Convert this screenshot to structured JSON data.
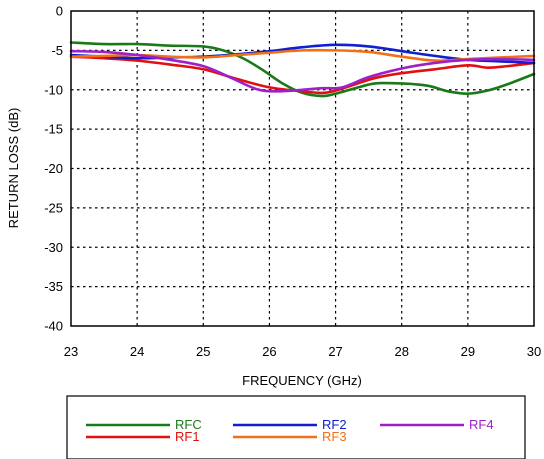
{
  "chart_data": {
    "type": "line",
    "xlabel": "FREQUENCY (GHz)",
    "ylabel": "RETURN LOSS  (dB)",
    "xlim": [
      23,
      30
    ],
    "ylim": [
      -40,
      0
    ],
    "xticks": [
      "23",
      "24",
      "25",
      "26",
      "27",
      "28",
      "29",
      "30"
    ],
    "yticks": [
      "0",
      "-5",
      "-10",
      "-15",
      "-20",
      "-25",
      "-30",
      "-35",
      "-40"
    ],
    "grid": true,
    "legend_position": "bottom",
    "series": [
      {
        "name": "RFC",
        "color": "#1a7a1a",
        "x": [
          23,
          23.5,
          24,
          24.5,
          25,
          25.3,
          25.6,
          25.9,
          26.2,
          26.5,
          26.8,
          27.0,
          27.3,
          27.6,
          28,
          28.4,
          28.7,
          29,
          29.3,
          29.6,
          30
        ],
        "y": [
          -4.0,
          -4.2,
          -4.2,
          -4.4,
          -4.5,
          -5.0,
          -6.0,
          -7.5,
          -9.2,
          -10.4,
          -10.8,
          -10.5,
          -9.8,
          -9.2,
          -9.2,
          -9.5,
          -10.2,
          -10.5,
          -10.1,
          -9.3,
          -8.0
        ]
      },
      {
        "name": "RF1",
        "color": "#e01010",
        "x": [
          23,
          23.5,
          24,
          24.5,
          25,
          25.5,
          26,
          26.5,
          26.8,
          27,
          27.3,
          27.6,
          28,
          28.5,
          29,
          29.3,
          29.6,
          30
        ],
        "y": [
          -5.8,
          -6.0,
          -6.3,
          -6.8,
          -7.4,
          -8.6,
          -9.7,
          -10.2,
          -10.4,
          -10.1,
          -9.3,
          -8.5,
          -7.9,
          -7.4,
          -6.9,
          -7.2,
          -7.0,
          -6.6
        ]
      },
      {
        "name": "RF2",
        "color": "#1020d0",
        "x": [
          23,
          23.5,
          24,
          24.5,
          25,
          25.5,
          26,
          26.5,
          27,
          27.5,
          28,
          28.5,
          29,
          29.5,
          30
        ],
        "y": [
          -5.6,
          -5.8,
          -6.0,
          -5.9,
          -5.8,
          -5.5,
          -5.1,
          -4.6,
          -4.3,
          -4.5,
          -5.1,
          -5.7,
          -6.2,
          -6.4,
          -6.6
        ]
      },
      {
        "name": "RF3",
        "color": "#f07018",
        "x": [
          23,
          23.5,
          24,
          24.5,
          25,
          25.5,
          26,
          26.5,
          27,
          27.5,
          28,
          28.5,
          29,
          29.5,
          30
        ],
        "y": [
          -5.8,
          -5.7,
          -5.6,
          -5.8,
          -5.9,
          -5.6,
          -5.3,
          -5.0,
          -5.0,
          -5.2,
          -5.8,
          -6.3,
          -6.1,
          -5.9,
          -5.7
        ]
      },
      {
        "name": "RF4",
        "color": "#a020c8",
        "x": [
          23,
          23.5,
          24,
          24.5,
          25,
          25.4,
          25.8,
          26.1,
          26.5,
          26.8,
          27.1,
          27.5,
          28,
          28.5,
          29,
          29.5,
          30
        ],
        "y": [
          -5.1,
          -5.2,
          -5.6,
          -6.2,
          -7.0,
          -8.4,
          -9.9,
          -10.2,
          -10.0,
          -9.8,
          -9.7,
          -8.4,
          -7.3,
          -6.6,
          -6.2,
          -6.1,
          -6.2
        ]
      }
    ],
    "legend": [
      {
        "label": "RFC",
        "color": "#1a7a1a"
      },
      {
        "label": "RF1",
        "color": "#e01010"
      },
      {
        "label": "RF2",
        "color": "#1020d0"
      },
      {
        "label": "RF3",
        "color": "#f07018"
      },
      {
        "label": "RF4",
        "color": "#a020c8"
      }
    ]
  }
}
